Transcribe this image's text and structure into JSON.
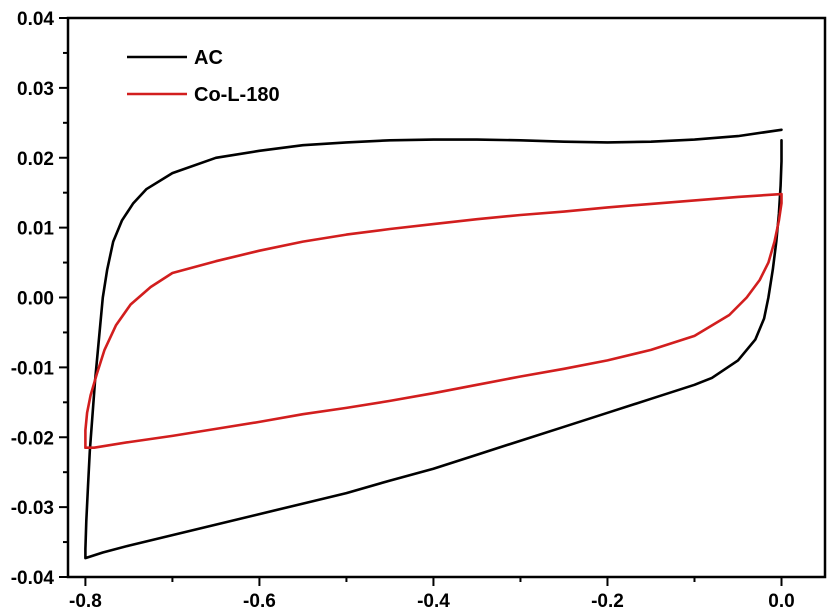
{
  "chart_data": {
    "type": "line",
    "title": "",
    "xlabel": "",
    "ylabel": "",
    "xlim": [
      -0.82,
      0.05
    ],
    "ylim": [
      -0.04,
      0.04
    ],
    "xticks": [
      {
        "value": -0.8,
        "label": "-0.8"
      },
      {
        "value": -0.6,
        "label": "-0.6"
      },
      {
        "value": -0.4,
        "label": "-0.4"
      },
      {
        "value": -0.2,
        "label": "-0.2"
      },
      {
        "value": 0.0,
        "label": "0.0"
      }
    ],
    "yticks": [
      {
        "value": 0.04,
        "label": "0.04"
      },
      {
        "value": 0.03,
        "label": "0.03"
      },
      {
        "value": 0.02,
        "label": "0.02"
      },
      {
        "value": 0.01,
        "label": "0.01"
      },
      {
        "value": 0.0,
        "label": "0.00"
      },
      {
        "value": -0.01,
        "label": "-0.01"
      },
      {
        "value": -0.02,
        "label": "-0.02"
      },
      {
        "value": -0.03,
        "label": "-0.03"
      },
      {
        "value": -0.04,
        "label": "-0.04"
      }
    ],
    "grid": false,
    "legend": "top-left",
    "series": [
      {
        "name": "AC",
        "color": "#000000",
        "points": [
          [
            0.0,
            0.0225
          ],
          [
            0.0,
            0.0195
          ],
          [
            -0.001,
            0.016
          ],
          [
            -0.003,
            0.012
          ],
          [
            -0.006,
            0.008
          ],
          [
            -0.01,
            0.004
          ],
          [
            -0.015,
            0.0
          ],
          [
            -0.02,
            -0.003
          ],
          [
            -0.03,
            -0.006
          ],
          [
            -0.05,
            -0.009
          ],
          [
            -0.08,
            -0.0115
          ],
          [
            -0.1,
            -0.0125
          ],
          [
            -0.15,
            -0.0145
          ],
          [
            -0.2,
            -0.0165
          ],
          [
            -0.25,
            -0.0185
          ],
          [
            -0.3,
            -0.0205
          ],
          [
            -0.35,
            -0.0225
          ],
          [
            -0.4,
            -0.0245
          ],
          [
            -0.45,
            -0.0262
          ],
          [
            -0.5,
            -0.028
          ],
          [
            -0.55,
            -0.0295
          ],
          [
            -0.6,
            -0.031
          ],
          [
            -0.65,
            -0.0325
          ],
          [
            -0.7,
            -0.034
          ],
          [
            -0.75,
            -0.0355
          ],
          [
            -0.78,
            -0.0365
          ],
          [
            -0.8,
            -0.0373
          ],
          [
            -0.8,
            -0.036
          ],
          [
            -0.799,
            -0.032
          ],
          [
            -0.797,
            -0.027
          ],
          [
            -0.795,
            -0.022
          ],
          [
            -0.792,
            -0.017
          ],
          [
            -0.789,
            -0.012
          ],
          [
            -0.786,
            -0.008
          ],
          [
            -0.783,
            -0.004
          ],
          [
            -0.78,
            0.0
          ],
          [
            -0.775,
            0.004
          ],
          [
            -0.768,
            0.008
          ],
          [
            -0.758,
            0.011
          ],
          [
            -0.745,
            0.0135
          ],
          [
            -0.73,
            0.0155
          ],
          [
            -0.7,
            0.0178
          ],
          [
            -0.65,
            0.02
          ],
          [
            -0.6,
            0.021
          ],
          [
            -0.55,
            0.0218
          ],
          [
            -0.5,
            0.0222
          ],
          [
            -0.45,
            0.0225
          ],
          [
            -0.4,
            0.0226
          ],
          [
            -0.35,
            0.0226
          ],
          [
            -0.3,
            0.0225
          ],
          [
            -0.25,
            0.0223
          ],
          [
            -0.2,
            0.0222
          ],
          [
            -0.15,
            0.0223
          ],
          [
            -0.1,
            0.0226
          ],
          [
            -0.05,
            0.0231
          ],
          [
            0.0,
            0.024
          ]
        ]
      },
      {
        "name": "Co-L-180",
        "color": "#d21e1e",
        "points": [
          [
            0.0,
            0.0148
          ],
          [
            0.0,
            0.0135
          ],
          [
            -0.003,
            0.011
          ],
          [
            -0.008,
            0.008
          ],
          [
            -0.015,
            0.005
          ],
          [
            -0.025,
            0.0025
          ],
          [
            -0.04,
            0.0
          ],
          [
            -0.06,
            -0.0025
          ],
          [
            -0.1,
            -0.0055
          ],
          [
            -0.15,
            -0.0075
          ],
          [
            -0.2,
            -0.009
          ],
          [
            -0.25,
            -0.0102
          ],
          [
            -0.3,
            -0.0113
          ],
          [
            -0.35,
            -0.0125
          ],
          [
            -0.4,
            -0.0137
          ],
          [
            -0.45,
            -0.0148
          ],
          [
            -0.5,
            -0.0158
          ],
          [
            -0.55,
            -0.0167
          ],
          [
            -0.6,
            -0.0178
          ],
          [
            -0.65,
            -0.0188
          ],
          [
            -0.7,
            -0.0198
          ],
          [
            -0.75,
            -0.0207
          ],
          [
            -0.79,
            -0.0215
          ],
          [
            -0.8,
            -0.0215
          ],
          [
            -0.8,
            -0.019
          ],
          [
            -0.798,
            -0.0165
          ],
          [
            -0.794,
            -0.014
          ],
          [
            -0.787,
            -0.011
          ],
          [
            -0.778,
            -0.0075
          ],
          [
            -0.765,
            -0.004
          ],
          [
            -0.748,
            -0.001
          ],
          [
            -0.725,
            0.0015
          ],
          [
            -0.7,
            0.0035
          ],
          [
            -0.65,
            0.0052
          ],
          [
            -0.6,
            0.0067
          ],
          [
            -0.55,
            0.008
          ],
          [
            -0.5,
            0.009
          ],
          [
            -0.45,
            0.0098
          ],
          [
            -0.4,
            0.0105
          ],
          [
            -0.35,
            0.0112
          ],
          [
            -0.3,
            0.0118
          ],
          [
            -0.25,
            0.0123
          ],
          [
            -0.2,
            0.0129
          ],
          [
            -0.15,
            0.0134
          ],
          [
            -0.1,
            0.0139
          ],
          [
            -0.05,
            0.0144
          ],
          [
            0.0,
            0.0148
          ]
        ]
      }
    ]
  }
}
